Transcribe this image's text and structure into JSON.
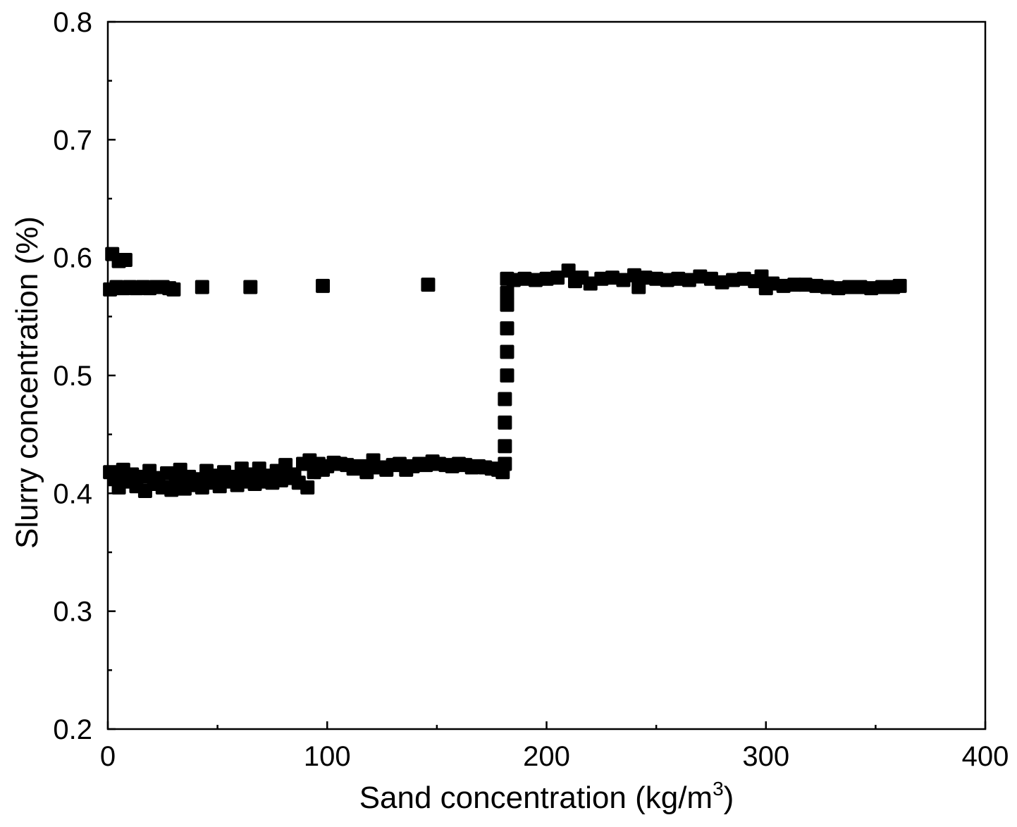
{
  "chart_data": {
    "type": "scatter",
    "title": "",
    "xlabel": "Sand concentration (kg/m",
    "xlabel_sup": "3",
    "xlabel_end": ")",
    "ylabel": "Slurry  concentration (%)",
    "xlim": [
      0,
      400
    ],
    "ylim": [
      0.2,
      0.8
    ],
    "x_ticks": [
      0,
      100,
      200,
      300,
      400
    ],
    "x_tick_labels": [
      "0",
      "100",
      "200",
      "300",
      "400"
    ],
    "x_minor_ticks": [
      50,
      150,
      250,
      350
    ],
    "y_ticks": [
      0.2,
      0.3,
      0.4,
      0.5,
      0.6,
      0.7,
      0.8
    ],
    "y_tick_labels": [
      "0.2",
      "0.3",
      "0.4",
      "0.5",
      "0.6",
      "0.7",
      "0.8"
    ],
    "y_minor_ticks": [
      0.25,
      0.35,
      0.45,
      0.55,
      0.65,
      0.75
    ],
    "grid": false,
    "legend": "none",
    "marker": "square",
    "marker_color": "#000000",
    "series": [
      {
        "points": [
          [
            2,
            0.603
          ],
          [
            5,
            0.597
          ],
          [
            8,
            0.598
          ],
          [
            1,
            0.573
          ],
          [
            4,
            0.575
          ],
          [
            7,
            0.574
          ],
          [
            10,
            0.575
          ],
          [
            13,
            0.574
          ],
          [
            16,
            0.575
          ],
          [
            19,
            0.574
          ],
          [
            22,
            0.575
          ],
          [
            25,
            0.575
          ],
          [
            28,
            0.574
          ],
          [
            30,
            0.573
          ],
          [
            43,
            0.575
          ],
          [
            65,
            0.575
          ],
          [
            98,
            0.576
          ],
          [
            146,
            0.577
          ],
          [
            1,
            0.418
          ],
          [
            3,
            0.412
          ],
          [
            5,
            0.405
          ],
          [
            7,
            0.42
          ],
          [
            9,
            0.41
          ],
          [
            11,
            0.416
          ],
          [
            13,
            0.406
          ],
          [
            15,
            0.414
          ],
          [
            17,
            0.402
          ],
          [
            19,
            0.419
          ],
          [
            21,
            0.408
          ],
          [
            23,
            0.413
          ],
          [
            25,
            0.405
          ],
          [
            27,
            0.417
          ],
          [
            29,
            0.403
          ],
          [
            31,
            0.41
          ],
          [
            33,
            0.42
          ],
          [
            35,
            0.404
          ],
          [
            37,
            0.414
          ],
          [
            39,
            0.407
          ],
          [
            41,
            0.412
          ],
          [
            43,
            0.405
          ],
          [
            45,
            0.419
          ],
          [
            47,
            0.409
          ],
          [
            49,
            0.415
          ],
          [
            51,
            0.406
          ],
          [
            53,
            0.418
          ],
          [
            55,
            0.41
          ],
          [
            57,
            0.414
          ],
          [
            59,
            0.407
          ],
          [
            61,
            0.421
          ],
          [
            63,
            0.41
          ],
          [
            65,
            0.416
          ],
          [
            67,
            0.408
          ],
          [
            69,
            0.421
          ],
          [
            71,
            0.41
          ],
          [
            73,
            0.415
          ],
          [
            75,
            0.409
          ],
          [
            77,
            0.419
          ],
          [
            79,
            0.411
          ],
          [
            81,
            0.424
          ],
          [
            83,
            0.413
          ],
          [
            85,
            0.416
          ],
          [
            87,
            0.409
          ],
          [
            89,
            0.425
          ],
          [
            91,
            0.405
          ],
          [
            92,
            0.428
          ],
          [
            94,
            0.418
          ],
          [
            96,
            0.425
          ],
          [
            98,
            0.42
          ],
          [
            100,
            0.423
          ],
          [
            103,
            0.426
          ],
          [
            106,
            0.425
          ],
          [
            109,
            0.424
          ],
          [
            112,
            0.421
          ],
          [
            115,
            0.423
          ],
          [
            118,
            0.418
          ],
          [
            121,
            0.428
          ],
          [
            124,
            0.422
          ],
          [
            127,
            0.42
          ],
          [
            130,
            0.424
          ],
          [
            133,
            0.425
          ],
          [
            136,
            0.42
          ],
          [
            139,
            0.423
          ],
          [
            142,
            0.425
          ],
          [
            145,
            0.424
          ],
          [
            148,
            0.427
          ],
          [
            151,
            0.425
          ],
          [
            154,
            0.424
          ],
          [
            157,
            0.423
          ],
          [
            160,
            0.425
          ],
          [
            163,
            0.424
          ],
          [
            166,
            0.422
          ],
          [
            169,
            0.423
          ],
          [
            172,
            0.422
          ],
          [
            175,
            0.421
          ],
          [
            178,
            0.42
          ],
          [
            180,
            0.418
          ],
          [
            181,
            0.425
          ],
          [
            181,
            0.44
          ],
          [
            181,
            0.46
          ],
          [
            181,
            0.48
          ],
          [
            182,
            0.5
          ],
          [
            182,
            0.52
          ],
          [
            182,
            0.54
          ],
          [
            182,
            0.56
          ],
          [
            182,
            0.57
          ],
          [
            182,
            0.582
          ],
          [
            185,
            0.581
          ],
          [
            190,
            0.582
          ],
          [
            195,
            0.581
          ],
          [
            200,
            0.582
          ],
          [
            205,
            0.583
          ],
          [
            210,
            0.589
          ],
          [
            213,
            0.58
          ],
          [
            216,
            0.583
          ],
          [
            220,
            0.578
          ],
          [
            225,
            0.582
          ],
          [
            230,
            0.583
          ],
          [
            235,
            0.581
          ],
          [
            240,
            0.585
          ],
          [
            242,
            0.575
          ],
          [
            245,
            0.583
          ],
          [
            250,
            0.582
          ],
          [
            255,
            0.581
          ],
          [
            260,
            0.582
          ],
          [
            265,
            0.581
          ],
          [
            270,
            0.584
          ],
          [
            275,
            0.582
          ],
          [
            280,
            0.579
          ],
          [
            285,
            0.581
          ],
          [
            290,
            0.582
          ],
          [
            295,
            0.58
          ],
          [
            298,
            0.584
          ],
          [
            300,
            0.574
          ],
          [
            303,
            0.578
          ],
          [
            308,
            0.576
          ],
          [
            313,
            0.577
          ],
          [
            318,
            0.577
          ],
          [
            323,
            0.576
          ],
          [
            328,
            0.575
          ],
          [
            333,
            0.574
          ],
          [
            338,
            0.575
          ],
          [
            343,
            0.575
          ],
          [
            348,
            0.574
          ],
          [
            353,
            0.575
          ],
          [
            358,
            0.575
          ],
          [
            361,
            0.576
          ]
        ]
      }
    ]
  }
}
